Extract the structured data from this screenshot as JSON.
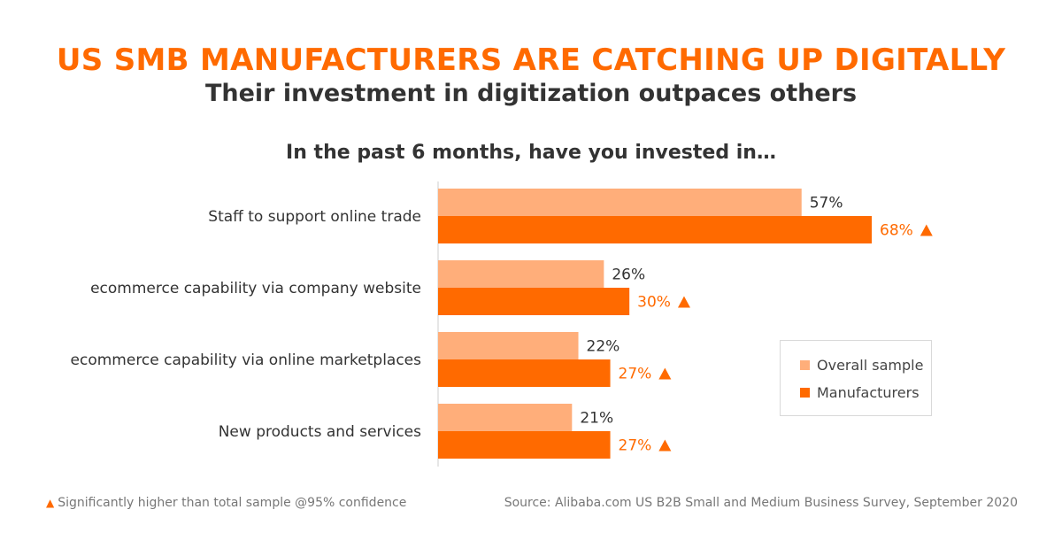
{
  "header": {
    "title": "US SMB MANUFACTURERS ARE CATCHING UP DIGITALLY",
    "subtitle": "Their investment in digitization outpaces others",
    "question": "In the past 6 months, have you invested in…"
  },
  "colors": {
    "accent": "#ff6a00",
    "overall": "#ffae7a",
    "manufacturers": "#ff6a00",
    "text": "#333333",
    "muted": "#777777"
  },
  "legend": {
    "overall": "Overall sample",
    "manufacturers": "Manufacturers"
  },
  "chart_data": {
    "type": "bar",
    "orientation": "horizontal",
    "categories": [
      "Staff to support online trade",
      "ecommerce capability via company website",
      "ecommerce capability via online marketplaces",
      "New products and services"
    ],
    "series": [
      {
        "name": "Overall sample",
        "values": [
          57,
          26,
          22,
          21
        ],
        "labels": [
          "57%",
          "26%",
          "22%",
          "21%"
        ],
        "significant": [
          false,
          false,
          false,
          false
        ]
      },
      {
        "name": "Manufacturers",
        "values": [
          68,
          30,
          27,
          27
        ],
        "labels": [
          "68%",
          "30%",
          "27%",
          "27%"
        ],
        "significant": [
          true,
          true,
          true,
          true
        ]
      }
    ],
    "xlim": [
      0,
      68
    ],
    "legend_position": "right",
    "grid": false
  },
  "footer": {
    "footnote": "Significantly higher than total sample @95% confidence",
    "source": "Source: Alibaba.com US B2B Small and Medium Business Survey, September 2020"
  }
}
